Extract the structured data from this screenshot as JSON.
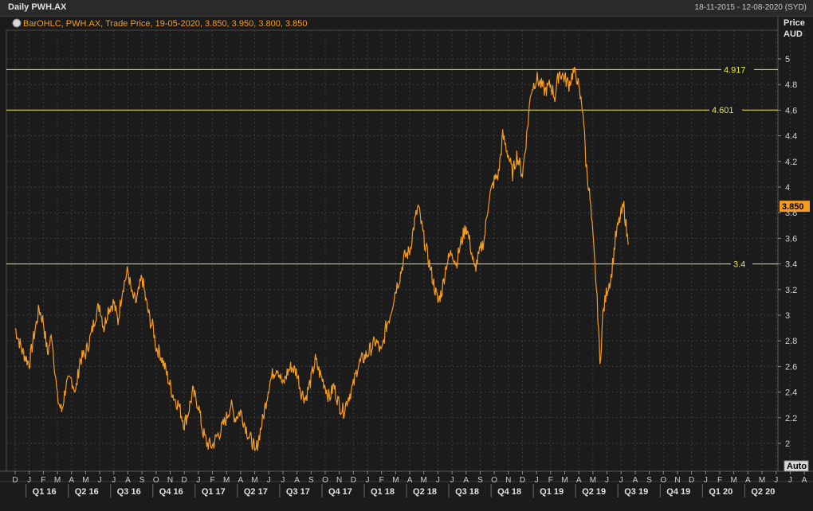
{
  "window": {
    "title": "Daily PWH.AX",
    "date_range": "18-11-2015 - 12-08-2020 (SYD)"
  },
  "legend": {
    "text": "BarOHLC, PWH.AX, Trade Price, 19-05-2020, 3.850, 3.950, 3.800, 3.850"
  },
  "axis_labels": {
    "price": "Price",
    "currency": "AUD",
    "auto": "Auto"
  },
  "colors": {
    "series": "#f59b1f",
    "hline": "#e8e83a",
    "grid": "#3c3c3c",
    "background": "#1b1b1b"
  },
  "chart_data": {
    "type": "line",
    "ylim": [
      1.9,
      5.1
    ],
    "y_ticks": [
      2,
      2.2,
      2.4,
      2.6,
      2.8,
      3,
      3.2,
      3.4,
      3.6,
      3.8,
      4,
      4.2,
      4.4,
      4.6,
      4.8,
      5
    ],
    "y_tick_labels": [
      "2",
      "2.2",
      "2.4",
      "2.6",
      "2.8",
      "3",
      "3.2",
      "3.4",
      "3.6",
      "3.8",
      "4",
      "4.2",
      "4.4",
      "4.6",
      "4.8",
      "5"
    ],
    "current_value_label": "3.850",
    "current_value": 3.85,
    "x_months": [
      "D",
      "J",
      "F",
      "M",
      "A",
      "M",
      "J",
      "J",
      "A",
      "S",
      "O",
      "N",
      "D",
      "J",
      "F",
      "M",
      "A",
      "M",
      "J",
      "J",
      "A",
      "S",
      "O",
      "N",
      "D",
      "J",
      "F",
      "M",
      "A",
      "M",
      "J",
      "J",
      "A",
      "S",
      "O",
      "N",
      "D",
      "J",
      "F",
      "M",
      "A",
      "M",
      "J",
      "J",
      "A",
      "S",
      "O",
      "N",
      "D",
      "J",
      "F",
      "M",
      "A",
      "M",
      "J",
      "J",
      "A"
    ],
    "x_quarters": [
      "Q1 16",
      "Q2 16",
      "Q3 16",
      "Q4 16",
      "Q1 17",
      "Q2 17",
      "Q3 17",
      "Q4 17",
      "Q1 18",
      "Q2 18",
      "Q3 18",
      "Q4 18",
      "Q1 19",
      "Q2 19",
      "Q3 19",
      "Q4 19",
      "Q1 20",
      "Q2 20"
    ],
    "horizontal_lines": [
      {
        "value": 4.917,
        "label": "4.917"
      },
      {
        "value": 4.601,
        "label": "4.601"
      },
      {
        "value": 3.4,
        "label": "3.4"
      }
    ],
    "grid": true,
    "series": [
      {
        "values": [
          [
            0,
            2.9
          ],
          [
            0.5,
            2.72
          ],
          [
            1,
            2.62
          ],
          [
            1.3,
            2.82
          ],
          [
            1.7,
            3.05
          ],
          [
            2,
            2.95
          ],
          [
            2.3,
            2.7
          ],
          [
            2.6,
            2.85
          ],
          [
            3,
            2.35
          ],
          [
            3.3,
            2.25
          ],
          [
            3.6,
            2.45
          ],
          [
            4,
            2.5
          ],
          [
            4.3,
            2.4
          ],
          [
            4.6,
            2.65
          ],
          [
            5,
            2.7
          ],
          [
            5.4,
            2.85
          ],
          [
            5.7,
            3.0
          ],
          [
            6,
            3.08
          ],
          [
            6.3,
            2.9
          ],
          [
            6.6,
            3.05
          ],
          [
            7,
            3.1
          ],
          [
            7.3,
            2.95
          ],
          [
            7.6,
            3.2
          ],
          [
            8,
            3.35
          ],
          [
            8.3,
            3.15
          ],
          [
            8.6,
            3.1
          ],
          [
            9,
            3.3
          ],
          [
            9.3,
            3.1
          ],
          [
            9.6,
            2.95
          ],
          [
            9.8,
            2.9
          ],
          [
            10,
            2.75
          ],
          [
            10.3,
            2.7
          ],
          [
            10.6,
            2.6
          ],
          [
            11,
            2.45
          ],
          [
            11.3,
            2.35
          ],
          [
            11.6,
            2.3
          ],
          [
            12,
            2.15
          ],
          [
            12.3,
            2.25
          ],
          [
            12.6,
            2.4
          ],
          [
            13,
            2.3
          ],
          [
            13.3,
            2.1
          ],
          [
            13.6,
            2.0
          ],
          [
            14,
            1.98
          ],
          [
            14.3,
            2.05
          ],
          [
            14.6,
            2.1
          ],
          [
            15,
            2.2
          ],
          [
            15.3,
            2.3
          ],
          [
            15.6,
            2.2
          ],
          [
            16,
            2.25
          ],
          [
            16.3,
            2.15
          ],
          [
            16.6,
            2.05
          ],
          [
            16.9,
            2.0
          ],
          [
            17,
            1.9
          ],
          [
            17.3,
            2.05
          ],
          [
            17.6,
            2.2
          ],
          [
            18,
            2.45
          ],
          [
            18.3,
            2.55
          ],
          [
            18.6,
            2.6
          ],
          [
            19,
            2.45
          ],
          [
            19.3,
            2.55
          ],
          [
            19.6,
            2.6
          ],
          [
            20,
            2.55
          ],
          [
            20.3,
            2.4
          ],
          [
            20.6,
            2.35
          ],
          [
            21,
            2.5
          ],
          [
            21.3,
            2.65
          ],
          [
            21.6,
            2.55
          ],
          [
            22,
            2.45
          ],
          [
            22.3,
            2.35
          ],
          [
            22.6,
            2.45
          ],
          [
            23,
            2.3
          ],
          [
            23.3,
            2.25
          ],
          [
            23.6,
            2.35
          ],
          [
            24,
            2.45
          ],
          [
            24.3,
            2.6
          ],
          [
            24.6,
            2.65
          ],
          [
            25,
            2.7
          ],
          [
            25.3,
            2.75
          ],
          [
            25.6,
            2.8
          ],
          [
            26,
            2.7
          ],
          [
            26.3,
            2.9
          ],
          [
            26.6,
            3.0
          ],
          [
            27,
            3.2
          ],
          [
            27.3,
            3.3
          ],
          [
            27.6,
            3.45
          ],
          [
            28,
            3.5
          ],
          [
            28.3,
            3.7
          ],
          [
            28.6,
            3.85
          ],
          [
            29,
            3.6
          ],
          [
            29.3,
            3.45
          ],
          [
            29.6,
            3.3
          ],
          [
            30,
            3.1
          ],
          [
            30.3,
            3.2
          ],
          [
            30.6,
            3.4
          ],
          [
            31,
            3.5
          ],
          [
            31.3,
            3.4
          ],
          [
            31.6,
            3.55
          ],
          [
            32,
            3.7
          ],
          [
            32.3,
            3.55
          ],
          [
            32.6,
            3.35
          ],
          [
            33,
            3.5
          ],
          [
            33.3,
            3.6
          ],
          [
            33.6,
            3.9
          ],
          [
            34,
            4.05
          ],
          [
            34.3,
            4.1
          ],
          [
            34.6,
            4.4
          ],
          [
            35,
            4.25
          ],
          [
            35.3,
            4.1
          ],
          [
            35.6,
            4.25
          ],
          [
            36,
            4.1
          ],
          [
            36.3,
            4.4
          ],
          [
            36.6,
            4.75
          ],
          [
            37,
            4.85
          ],
          [
            37.3,
            4.8
          ],
          [
            37.6,
            4.75
          ],
          [
            38,
            4.8
          ],
          [
            38.3,
            4.7
          ],
          [
            38.6,
            4.9
          ],
          [
            39,
            4.85
          ],
          [
            39.3,
            4.8
          ],
          [
            39.6,
            4.9
          ],
          [
            39.9,
            4.85
          ],
          [
            40,
            4.75
          ],
          [
            40.3,
            4.6
          ],
          [
            40.5,
            4.2
          ],
          [
            40.8,
            3.9
          ],
          [
            41,
            3.6
          ],
          [
            41.2,
            3.3
          ],
          [
            41.4,
            2.9
          ],
          [
            41.5,
            2.6
          ],
          [
            41.7,
            3.0
          ],
          [
            42,
            3.2
          ],
          [
            42.3,
            3.3
          ],
          [
            42.6,
            3.6
          ],
          [
            42.9,
            3.75
          ],
          [
            43.2,
            3.85
          ],
          [
            43.5,
            3.55
          ]
        ]
      }
    ]
  }
}
